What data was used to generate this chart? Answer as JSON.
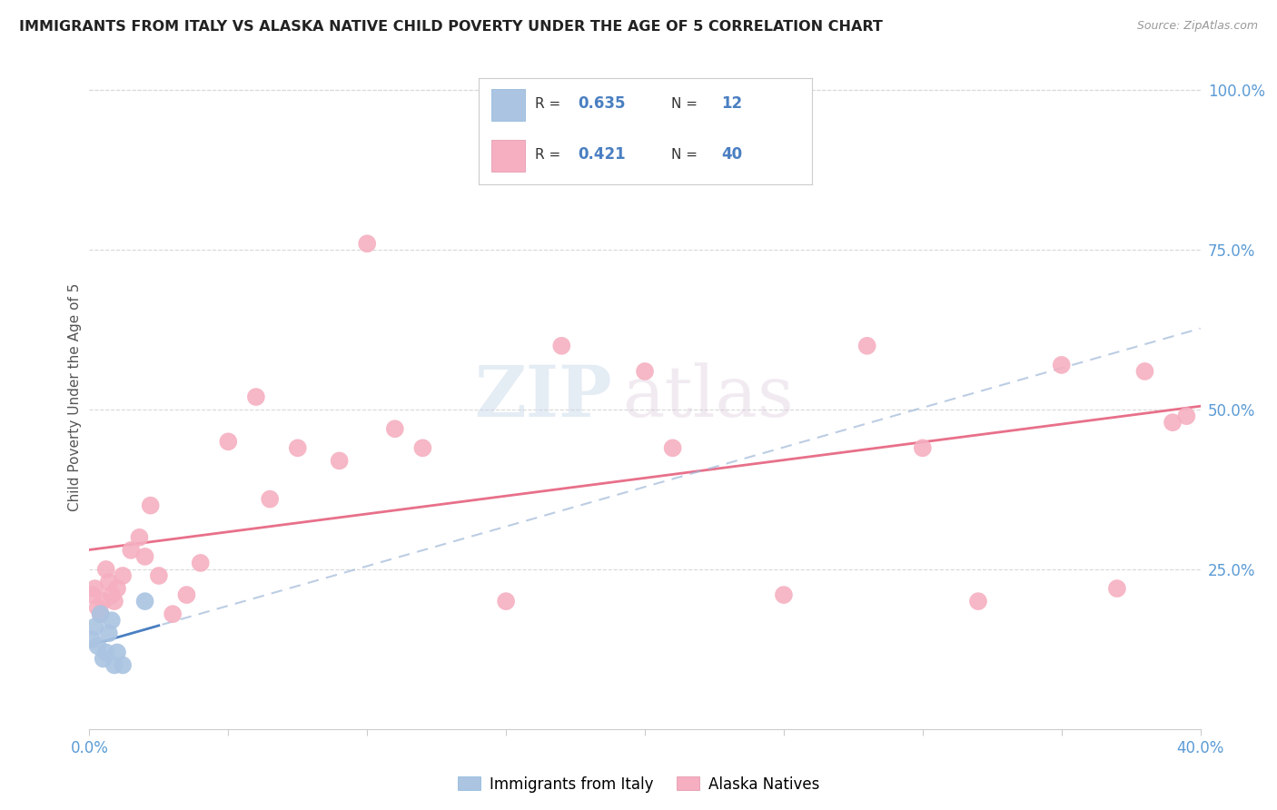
{
  "title": "IMMIGRANTS FROM ITALY VS ALASKA NATIVE CHILD POVERTY UNDER THE AGE OF 5 CORRELATION CHART",
  "source": "Source: ZipAtlas.com",
  "ylabel_left": "Child Poverty Under the Age of 5",
  "x_min": 0.0,
  "x_max": 0.4,
  "y_min": 0.0,
  "y_max": 1.04,
  "right_yticks": [
    0.0,
    0.25,
    0.5,
    0.75,
    1.0
  ],
  "right_yticklabels": [
    "",
    "25.0%",
    "50.0%",
    "75.0%",
    "100.0%"
  ],
  "bottom_xticks": [
    0.0,
    0.05,
    0.1,
    0.15,
    0.2,
    0.25,
    0.3,
    0.35,
    0.4
  ],
  "italy_R": 0.635,
  "italy_N": 12,
  "alaska_R": 0.421,
  "alaska_N": 40,
  "italy_scatter_color": "#aac4e2",
  "alaska_scatter_color": "#f5afc0",
  "italy_line_color": "#4a7fc1",
  "alaska_line_color": "#e8708a",
  "italy_dashed_color": "#a0b8d8",
  "italy_x": [
    0.001,
    0.002,
    0.003,
    0.004,
    0.005,
    0.006,
    0.007,
    0.008,
    0.009,
    0.01,
    0.012,
    0.02
  ],
  "italy_y": [
    0.14,
    0.16,
    0.13,
    0.18,
    0.11,
    0.12,
    0.15,
    0.17,
    0.1,
    0.12,
    0.1,
    0.2
  ],
  "alaska_x": [
    0.001,
    0.002,
    0.003,
    0.004,
    0.005,
    0.006,
    0.007,
    0.008,
    0.009,
    0.01,
    0.012,
    0.015,
    0.018,
    0.02,
    0.022,
    0.025,
    0.03,
    0.035,
    0.04,
    0.05,
    0.06,
    0.065,
    0.075,
    0.09,
    0.1,
    0.11,
    0.12,
    0.15,
    0.17,
    0.2,
    0.21,
    0.25,
    0.28,
    0.3,
    0.32,
    0.35,
    0.37,
    0.38,
    0.39,
    0.395
  ],
  "alaska_y": [
    0.21,
    0.22,
    0.19,
    0.18,
    0.2,
    0.25,
    0.23,
    0.21,
    0.2,
    0.22,
    0.24,
    0.28,
    0.3,
    0.27,
    0.35,
    0.24,
    0.18,
    0.21,
    0.26,
    0.45,
    0.52,
    0.36,
    0.44,
    0.42,
    0.76,
    0.47,
    0.44,
    0.2,
    0.6,
    0.56,
    0.44,
    0.21,
    0.6,
    0.44,
    0.2,
    0.57,
    0.22,
    0.56,
    0.48,
    0.49
  ],
  "watermark_zip": "ZIP",
  "watermark_atlas": "atlas",
  "scatter_size": 200,
  "background_color": "#ffffff",
  "grid_color": "#d8d8d8",
  "title_color": "#222222",
  "axis_label_color": "#555555",
  "tick_color": "#5b9bd5",
  "legend_italy_label": "Immigrants from Italy",
  "legend_alaska_label": "Alaska Natives"
}
